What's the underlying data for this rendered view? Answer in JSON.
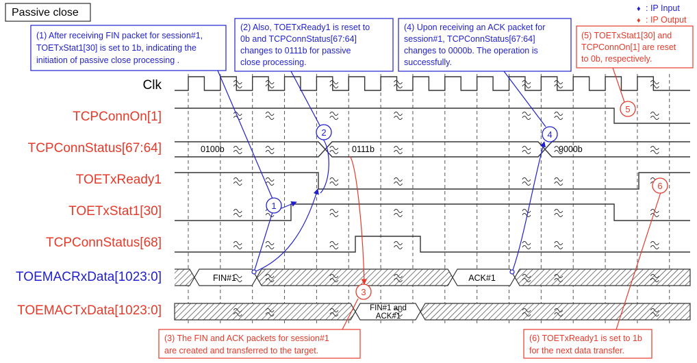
{
  "title": "Passive close",
  "legend": [
    {
      "symbol": "♦",
      "label": ": IP Input",
      "color": "#1f1fcf"
    },
    {
      "symbol": "♦",
      "label": ": IP Output",
      "color": "#e53a2a"
    }
  ],
  "signals": [
    {
      "name": "Clk",
      "color": "#000000"
    },
    {
      "name": "TCPConnOn[1]",
      "color": "#e53a2a"
    },
    {
      "name": "TCPConnStatus[67:64]",
      "color": "#e53a2a"
    },
    {
      "name": "TOETxReady1",
      "color": "#e53a2a"
    },
    {
      "name": "TOETxStat1[30]",
      "color": "#e53a2a"
    },
    {
      "name": "TCPConnStatus[68]",
      "color": "#e53a2a"
    },
    {
      "name": "TOEMACRxData[1023:0]",
      "color": "#1f1fcf"
    },
    {
      "name": "TOEMACTxData[1023:0]",
      "color": "#e53a2a"
    }
  ],
  "values": {
    "status_before": "0100b",
    "status_middle": "0111b",
    "status_after": "0000b",
    "rx_fin": "FIN#1",
    "rx_ack": "ACK#1",
    "tx_line1": "FIN#1 and",
    "tx_line2": "ACK#1"
  },
  "notes": [
    {
      "num": "1",
      "color": "#1f1fcf",
      "lines": [
        "(1) After receiving FIN packet for session#1,",
        "TOETxStat1[30] is set to 1b, indicating the",
        "initiation of passive close processing ."
      ]
    },
    {
      "num": "2",
      "color": "#1f1fcf",
      "lines": [
        "(2) Also, TOETxReady1 is reset to",
        "0b and TCPConnStatus[67:64]",
        "changes to 0111b for passive",
        "close processing."
      ]
    },
    {
      "num": "3",
      "color": "#e53a2a",
      "lines": [
        "(3) The FIN and ACK packets for session#1",
        "are created and transferred to the target."
      ]
    },
    {
      "num": "4",
      "color": "#1f1fcf",
      "lines": [
        "(4) Upon receiving an ACK packet for",
        "session#1, TCPConnStatus[67:64]",
        "changes to 0000b. The operation is",
        "successfully."
      ]
    },
    {
      "num": "5",
      "color": "#e53a2a",
      "lines": [
        "(5) TOETxStat1[30] and",
        "TCPConnOn[1] are reset",
        "to 0b, respectively."
      ]
    },
    {
      "num": "6",
      "color": "#e53a2a",
      "lines": [
        "(6) TOETxReady1 is set to 1b",
        "for the next data transfer."
      ]
    }
  ],
  "colors": {
    "blue": "#1f1fcf",
    "red": "#e53a2a",
    "wave": "#333333",
    "grid": "#555555"
  }
}
